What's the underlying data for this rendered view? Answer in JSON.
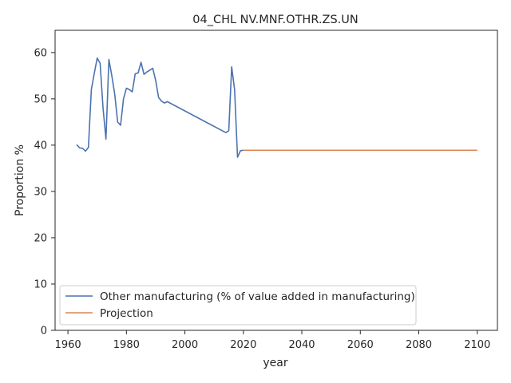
{
  "chart_data": {
    "type": "line",
    "title": "04_CHL NV.MNF.OTHR.ZS.UN",
    "xlabel": "year",
    "ylabel": "Proportion %",
    "xlim": [
      1955.6,
      2106.9
    ],
    "ylim": [
      0,
      64.8
    ],
    "xticks": [
      1960,
      1980,
      2000,
      2020,
      2040,
      2060,
      2080,
      2100
    ],
    "yticks": [
      0,
      10,
      20,
      30,
      40,
      50,
      60
    ],
    "grid": false,
    "legend_position": "lower-left",
    "series": [
      {
        "name": "Other manufacturing (% of value added in manufacturing)",
        "color": "#4c72b0",
        "points": [
          [
            1963,
            40.1
          ],
          [
            1964,
            39.4
          ],
          [
            1965,
            39.3
          ],
          [
            1966,
            38.7
          ],
          [
            1967,
            39.5
          ],
          [
            1968,
            52.0
          ],
          [
            1969,
            55.5
          ],
          [
            1970,
            58.8
          ],
          [
            1971,
            57.7
          ],
          [
            1972,
            48.0
          ],
          [
            1973,
            41.3
          ],
          [
            1974,
            58.5
          ],
          [
            1975,
            55.0
          ],
          [
            1976,
            51.0
          ],
          [
            1977,
            45.0
          ],
          [
            1978,
            44.3
          ],
          [
            1979,
            50.0
          ],
          [
            1980,
            52.3
          ],
          [
            1981,
            52.0
          ],
          [
            1982,
            51.5
          ],
          [
            1983,
            55.4
          ],
          [
            1984,
            55.6
          ],
          [
            1985,
            57.9
          ],
          [
            1986,
            55.3
          ],
          [
            1987,
            55.8
          ],
          [
            1988,
            56.2
          ],
          [
            1989,
            56.6
          ],
          [
            1990,
            54.0
          ],
          [
            1991,
            50.3
          ],
          [
            1992,
            49.5
          ],
          [
            1993,
            49.1
          ],
          [
            1994,
            49.4
          ],
          [
            2014,
            42.7
          ],
          [
            2015,
            43.1
          ],
          [
            2016,
            56.9
          ],
          [
            2017,
            52.0
          ],
          [
            2018,
            37.4
          ],
          [
            2019,
            38.8
          ],
          [
            2020,
            38.9
          ]
        ]
      },
      {
        "name": "Projection",
        "color": "#dd8452",
        "points": [
          [
            2020,
            38.9
          ],
          [
            2100,
            38.9
          ]
        ]
      }
    ]
  }
}
